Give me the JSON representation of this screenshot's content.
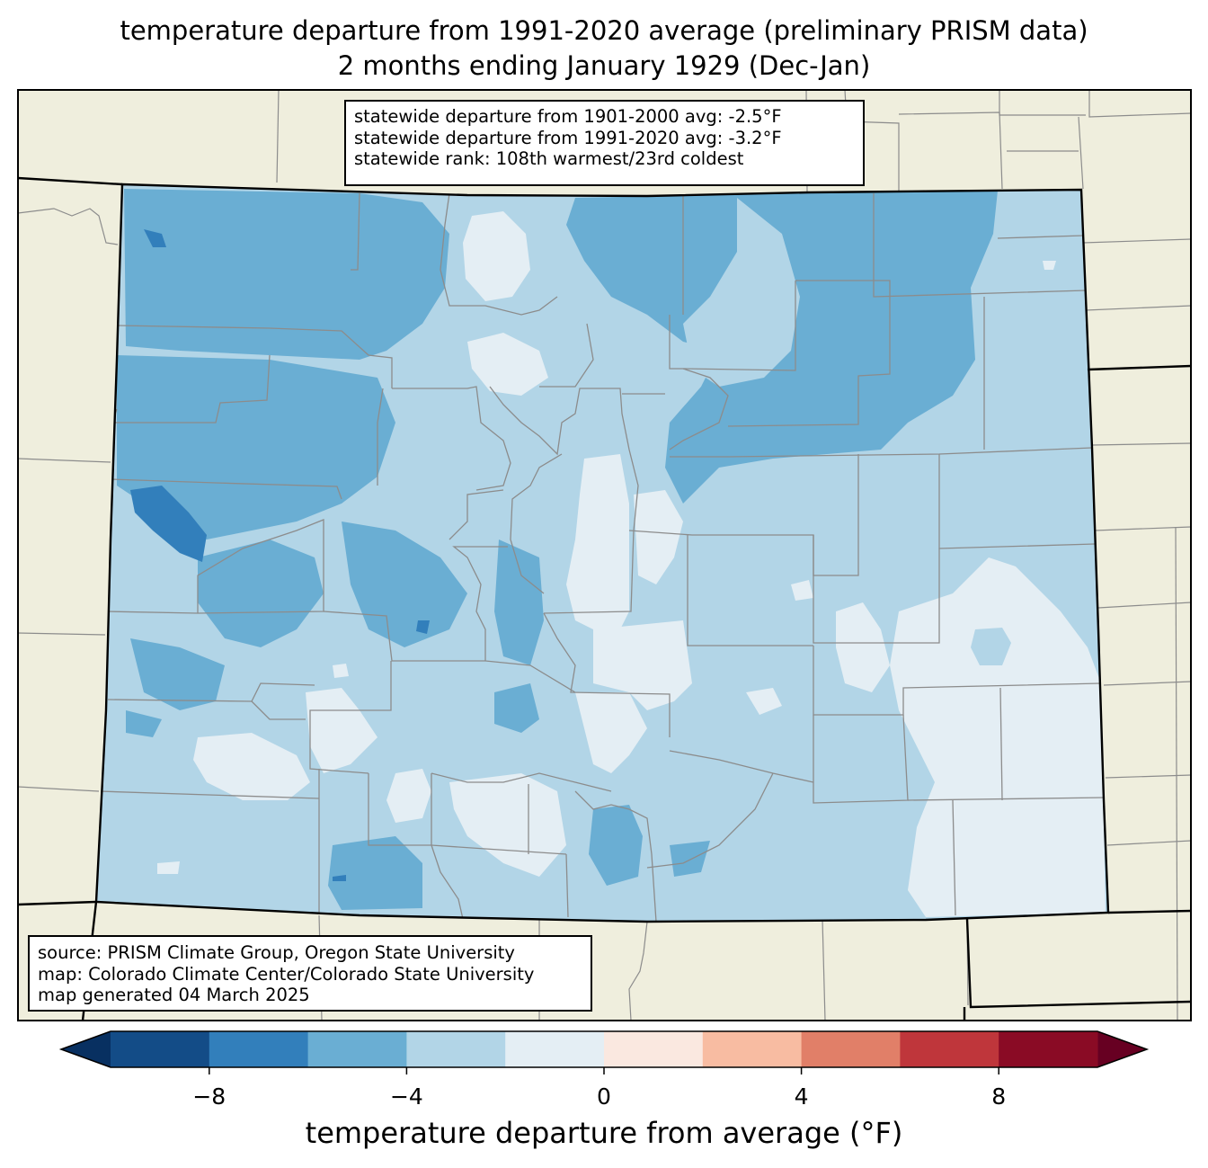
{
  "title": {
    "line1": "temperature departure from 1991-2020 average (preliminary PRISM data)",
    "line2": "2 months ending January 1929 (Dec-Jan)"
  },
  "stats": {
    "line1": "statewide departure from 1901-2000 avg: -2.5°F",
    "line2": "statewide departure from 1991-2020 avg: -3.2°F",
    "line3": "statewide rank: 108th warmest/23rd coldest"
  },
  "source": {
    "line1": "source: PRISM Climate Group, Oregon State University",
    "line2": "map: Colorado Climate Center/Colorado State University",
    "line3": "map generated 04 March 2025"
  },
  "colorbar": {
    "label": "temperature departure from average (°F)",
    "ticks": [
      "−8",
      "−4",
      "0",
      "4",
      "8"
    ],
    "tick_values": [
      -8,
      -4,
      0,
      4,
      8
    ],
    "bin_edges": [
      -10,
      -8,
      -6,
      -4,
      -2,
      0,
      2,
      4,
      6,
      8,
      10
    ],
    "colors": [
      "#134c87",
      "#327fbb",
      "#6aaed3",
      "#b2d5e7",
      "#e4eef4",
      "#fae8e0",
      "#f8bca2",
      "#e17f68",
      "#bf363b",
      "#8a0b25"
    ],
    "under_color": "#083061",
    "over_color": "#670022"
  },
  "map": {
    "land_color": "#efeedd",
    "dominant_category": "-4 to -2"
  }
}
